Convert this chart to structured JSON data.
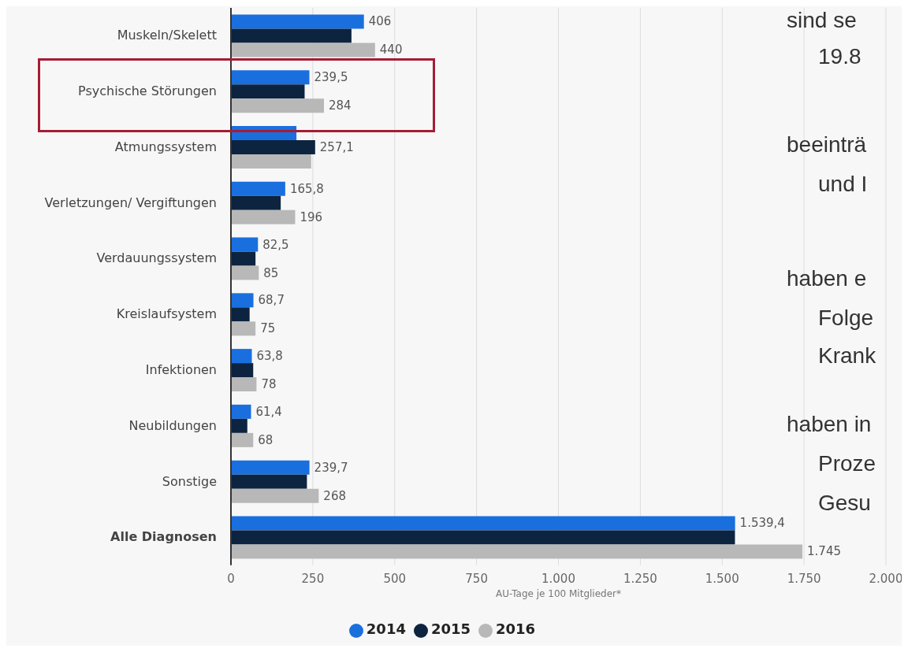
{
  "chart_data": {
    "type": "bar",
    "orientation": "horizontal",
    "categories": [
      "Muskeln/Skelett",
      "Psychische Störungen",
      "Atmungssystem",
      "Verletzungen/ Vergiftungen",
      "Verdauungssystem",
      "Kreislaufsystem",
      "Infektionen",
      "Neubildungen",
      "Sonstige",
      "Alle Diagnosen"
    ],
    "series": [
      {
        "name": "2014",
        "color": "#1a6fdf",
        "values": [
          406,
          239.5,
          200,
          165.8,
          82.5,
          68.7,
          63.8,
          61.4,
          239.7,
          1539.4
        ],
        "value_labels": [
          "406",
          "239,5",
          null,
          "165,8",
          "82,5",
          "68,7",
          "63,8",
          "61,4",
          "239,7",
          "1.539,4"
        ]
      },
      {
        "name": "2015",
        "color": "#0d2440",
        "values": [
          368,
          225,
          257.1,
          152,
          75,
          57,
          68,
          50,
          232,
          1539
        ],
        "value_labels": [
          null,
          null,
          "257,1",
          null,
          null,
          null,
          null,
          null,
          null,
          null
        ]
      },
      {
        "name": "2016",
        "color": "#b8b8b8",
        "values": [
          440,
          284,
          245,
          196,
          85,
          75,
          78,
          68,
          268,
          1745
        ],
        "value_labels": [
          "440",
          "284",
          null,
          "196",
          "85",
          "75",
          "78",
          "68",
          "268",
          "1.745"
        ]
      }
    ],
    "xlim": [
      0,
      2000
    ],
    "xticks": [
      0,
      250,
      500,
      750,
      {
        "value": 1000,
        "label": "1.000"
      },
      {
        "value": 1250,
        "label": "1.250"
      },
      {
        "value": 1500,
        "label": "1.500"
      },
      {
        "value": 1750,
        "label": "1.750"
      },
      {
        "value": 2000,
        "label": "2.000"
      }
    ],
    "xlabel": "AU-Tage je 100 Mitglieder*",
    "grid": "x",
    "legend": "bottom",
    "annotations": [
      "sind se",
      "19.8",
      "beeinträ",
      "und I",
      "haben e",
      "Folge",
      "Krank",
      "haben in",
      "Proze",
      "Gesu"
    ]
  }
}
